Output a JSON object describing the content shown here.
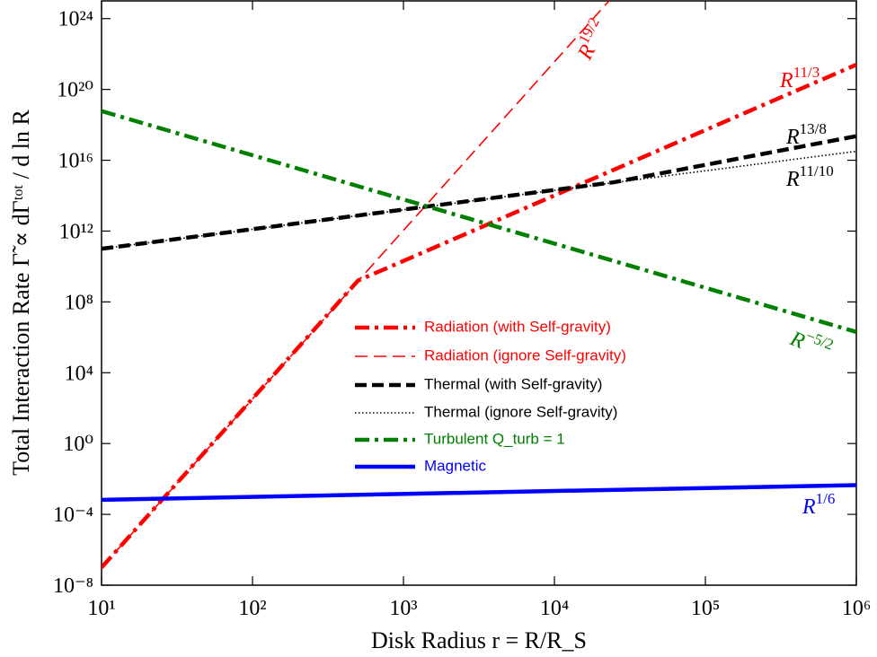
{
  "chart_data": {
    "type": "line",
    "xlabel": "Disk Radius r = R/R_S",
    "ylabel": "Total Interaction Rate Γ̃ ∝ dΓᵗᵒᵗ / d ln R",
    "xscale": "log",
    "yscale": "log",
    "xlim": [
      10,
      1000000
    ],
    "ylim": [
      1e-08,
      1e+25
    ],
    "xticks": [
      {
        "value": 10,
        "label": "10¹"
      },
      {
        "value": 100,
        "label": "10²"
      },
      {
        "value": 1000,
        "label": "10³"
      },
      {
        "value": 10000,
        "label": "10⁴"
      },
      {
        "value": 100000,
        "label": "10⁵"
      },
      {
        "value": 1000000,
        "label": "10⁶"
      }
    ],
    "yticks": [
      {
        "value": 1e-08,
        "label": "10⁻⁸"
      },
      {
        "value": 0.0001,
        "label": "10⁻⁴"
      },
      {
        "value": 1,
        "label": "10⁰"
      },
      {
        "value": 10000,
        "label": "10⁴"
      },
      {
        "value": 100000000.0,
        "label": "10⁸"
      },
      {
        "value": 1000000000000.0,
        "label": "10¹²"
      },
      {
        "value": 1e+16,
        "label": "10¹⁶"
      },
      {
        "value": 1e+20,
        "label": "10²⁰"
      },
      {
        "value": 1e+24,
        "label": "10²⁴"
      }
    ],
    "series": [
      {
        "name": "Radiation (with Self-gravity)",
        "color": "#ff0000",
        "style": "dashdot-thick",
        "x": [
          10,
          500,
          1000000
        ],
        "values": [
          1e-07,
          1600000000.0,
          2.5e+21
        ]
      },
      {
        "name": "Radiation (ignore Self-gravity)",
        "color": "#ff0000",
        "style": "dashed-thin",
        "x": [
          10,
          23000
        ],
        "values": [
          1e-07,
          1e+25
        ]
      },
      {
        "name": "Thermal (with Self-gravity)",
        "color": "#000000",
        "style": "dashed-thick",
        "x": [
          10,
          25000,
          1000000
        ],
        "values": [
          100000000000.0,
          580000000000000.0,
          2.3e+17
        ]
      },
      {
        "name": "Thermal (ignore Self-gravity)",
        "color": "#000000",
        "style": "dotted-thin",
        "x": [
          10,
          1000000
        ],
        "values": [
          100000000000.0,
          3.2e+16
        ]
      },
      {
        "name": "Turbulent Q_turb = 1",
        "color": "#008000",
        "style": "dashdot-thick",
        "x": [
          10,
          1000000
        ],
        "values": [
          6e+18,
          2000000.0
        ]
      },
      {
        "name": "Magnetic",
        "color": "#0000ff",
        "style": "solid-thick",
        "x": [
          10,
          1000000
        ],
        "values": [
          0.00066,
          0.0045
        ]
      }
    ],
    "annotations": [
      {
        "base": "R",
        "exponent": "19/2",
        "color": "#ff0000"
      },
      {
        "base": "R",
        "exponent": "11/3",
        "color": "#ff0000"
      },
      {
        "base": "R",
        "exponent": "13/8",
        "color": "#000000"
      },
      {
        "base": "R",
        "exponent": "11/10",
        "color": "#000000"
      },
      {
        "base": "R",
        "exponent": "−5/2",
        "color": "#008000"
      },
      {
        "base": "R",
        "exponent": "1/6",
        "color": "#0000ff"
      }
    ]
  }
}
